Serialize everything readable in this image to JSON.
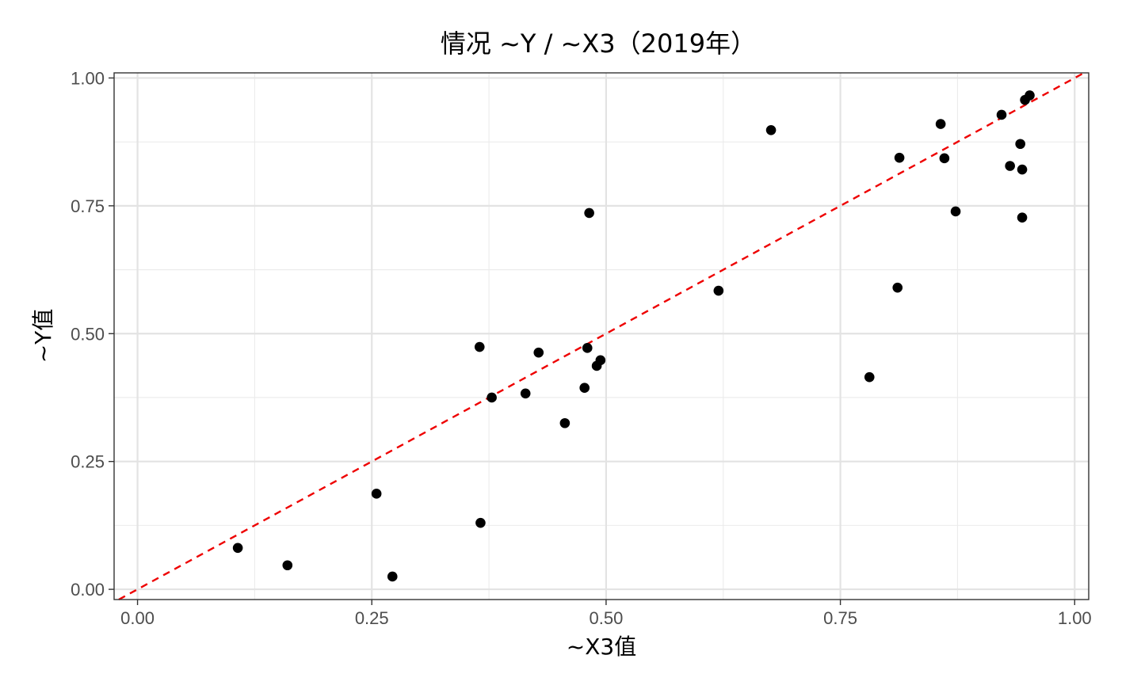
{
  "chart_data": {
    "type": "scatter",
    "title": "情况 ~Y / ~X3（2019年）",
    "xlabel": "~X3值",
    "ylabel": "~Y值",
    "xlim": [
      -0.025,
      1.015
    ],
    "ylim": [
      -0.02,
      1.01
    ],
    "x_ticks": [
      0.0,
      0.25,
      0.5,
      0.75,
      1.0
    ],
    "x_tick_labels": [
      "0.00",
      "0.25",
      "0.50",
      "0.75",
      "1.00"
    ],
    "y_ticks": [
      0.0,
      0.25,
      0.5,
      0.75,
      1.0
    ],
    "y_tick_labels": [
      "0.00",
      "0.25",
      "0.50",
      "0.75",
      "1.00"
    ],
    "grid": true,
    "point_color": "#000000",
    "reference_line": {
      "type": "y=x",
      "color": "#ee0000",
      "style": "dashed"
    },
    "points": [
      {
        "x": 0.107,
        "y": 0.081
      },
      {
        "x": 0.16,
        "y": 0.047
      },
      {
        "x": 0.255,
        "y": 0.187
      },
      {
        "x": 0.272,
        "y": 0.025
      },
      {
        "x": 0.365,
        "y": 0.474
      },
      {
        "x": 0.366,
        "y": 0.13
      },
      {
        "x": 0.378,
        "y": 0.375
      },
      {
        "x": 0.414,
        "y": 0.383
      },
      {
        "x": 0.428,
        "y": 0.463
      },
      {
        "x": 0.456,
        "y": 0.325
      },
      {
        "x": 0.477,
        "y": 0.394
      },
      {
        "x": 0.48,
        "y": 0.472
      },
      {
        "x": 0.482,
        "y": 0.736
      },
      {
        "x": 0.49,
        "y": 0.437
      },
      {
        "x": 0.494,
        "y": 0.448
      },
      {
        "x": 0.62,
        "y": 0.584
      },
      {
        "x": 0.676,
        "y": 0.898
      },
      {
        "x": 0.781,
        "y": 0.415
      },
      {
        "x": 0.811,
        "y": 0.59
      },
      {
        "x": 0.813,
        "y": 0.844
      },
      {
        "x": 0.857,
        "y": 0.91
      },
      {
        "x": 0.861,
        "y": 0.843
      },
      {
        "x": 0.873,
        "y": 0.739
      },
      {
        "x": 0.922,
        "y": 0.928
      },
      {
        "x": 0.931,
        "y": 0.828
      },
      {
        "x": 0.942,
        "y": 0.871
      },
      {
        "x": 0.944,
        "y": 0.821
      },
      {
        "x": 0.944,
        "y": 0.727
      },
      {
        "x": 0.947,
        "y": 0.957
      },
      {
        "x": 0.952,
        "y": 0.966
      }
    ]
  }
}
